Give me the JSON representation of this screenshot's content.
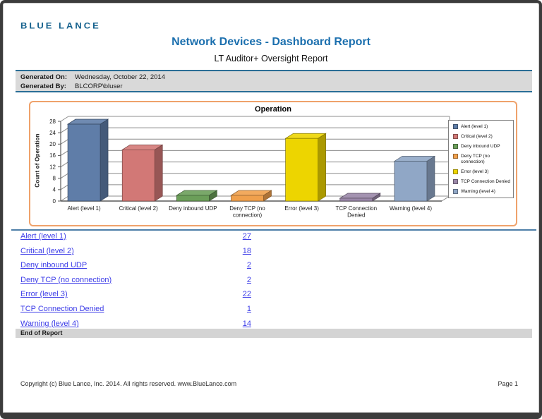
{
  "logo_text": "BLUE LANCE",
  "header": {
    "title": "Network Devices - Dashboard Report",
    "subtitle": "LT Auditor+ Oversight Report"
  },
  "meta": {
    "generated_on_label": "Generated On:",
    "generated_on": "Wednesday, October 22, 2014",
    "generated_by_label": "Generated By:",
    "generated_by": "BLCORP\\bluser"
  },
  "chart_data": {
    "type": "bar",
    "title": "Operation",
    "ylabel": "Count of Operation",
    "ylim": [
      0,
      28
    ],
    "ytick_step": 4,
    "grid": true,
    "legend_position": "right",
    "categories": [
      "Alert (level 1)",
      "Critical (level 2)",
      "Deny inbound UDP",
      "Deny TCP (no connection)",
      "Error (level 3)",
      "TCP Connection Denied",
      "Warning (level 4)"
    ],
    "categories_wrapped": [
      [
        "Alert (level 1)"
      ],
      [
        "Critical (level 2)"
      ],
      [
        "Deny inbound UDP"
      ],
      [
        "Deny TCP (no",
        "connection)"
      ],
      [
        "Error (level 3)"
      ],
      [
        "TCP Connection",
        "Denied"
      ],
      [
        "Warning (level 4)"
      ]
    ],
    "values": [
      27,
      18,
      2,
      2,
      22,
      1,
      14
    ],
    "colors": [
      "#5f7da8",
      "#d27876",
      "#6b9e59",
      "#f0a04c",
      "#edd500",
      "#9a87a8",
      "#90a7c6"
    ],
    "legend": [
      "Alert (level 1)",
      "Critical (level 2)",
      "Deny inbound UDP",
      "Deny TCP (no connection)",
      "Error (level 3)",
      "TCP Connection Denied",
      "Warning (level 4)"
    ]
  },
  "table": {
    "rows": [
      {
        "label": "Alert (level 1)",
        "value": "27"
      },
      {
        "label": "Critical (level 2)",
        "value": "18"
      },
      {
        "label": "Deny inbound UDP",
        "value": "2"
      },
      {
        "label": "Deny TCP (no connection)",
        "value": "2"
      },
      {
        "label": "Error (level 3)",
        "value": "22"
      },
      {
        "label": "TCP Connection Denied",
        "value": "1"
      },
      {
        "label": "Warning (level 4)",
        "value": "14"
      }
    ]
  },
  "end_of_report": "End of Report",
  "footer": {
    "copyright": "Copyright (c) Blue Lance, Inc. 2014. All rights reserved. www.BlueLance.com",
    "page": "Page 1"
  },
  "colors": {
    "title_blue": "#1b6fae",
    "logo_blue": "#15618d",
    "meta_border": "#2a6e96",
    "meta_bg": "#d9d9d9",
    "chart_border": "#efa26b",
    "divider": "#4e7fa8",
    "link_blue": "#3e3ee8"
  }
}
